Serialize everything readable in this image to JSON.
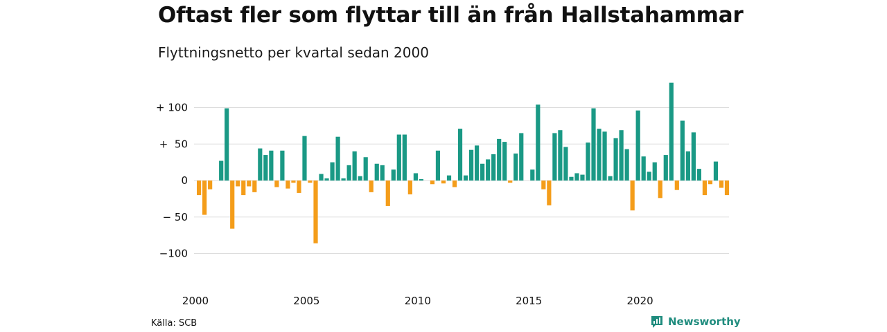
{
  "title": "Oftast fler som flyttar till än från Hallstahammar",
  "subtitle": "Flyttningsnetto per kvartal sedan 2000",
  "source": "Källa: SCB",
  "brand": {
    "name": "Newsworthy",
    "icon": "newsworthy-logo-icon"
  },
  "colors": {
    "positive": "#1a9985",
    "negative": "#f49d1a",
    "grid": "#dddddd"
  },
  "chart_data": {
    "type": "bar",
    "title": "Oftast fler som flyttar till än från Hallstahammar",
    "subtitle": "Flyttningsnetto per kvartal sedan 2000",
    "ylim": [
      -130,
      135
    ],
    "y_ticks": [
      {
        "value": 100,
        "label": "+ 100"
      },
      {
        "value": 50,
        "label": "+  50"
      },
      {
        "value": 0,
        "label": "0"
      },
      {
        "value": -50,
        "label": "− 50"
      },
      {
        "value": -100,
        "label": "−100"
      }
    ],
    "x_ticks": [
      "2000",
      "2005",
      "2010",
      "2015",
      "2020"
    ],
    "x_start": "2000 Q1",
    "grid": true,
    "legend": "none",
    "values": [
      -20,
      -47,
      -12,
      0,
      27,
      99,
      -66,
      -8,
      -20,
      -8,
      -16,
      44,
      35,
      41,
      -9,
      41,
      -11,
      -3,
      -17,
      61,
      -3,
      -86,
      9,
      3,
      25,
      60,
      3,
      21,
      40,
      6,
      32,
      -16,
      23,
      21,
      -35,
      15,
      63,
      63,
      -19,
      10,
      2,
      0,
      -5,
      41,
      -4,
      7,
      -9,
      71,
      7,
      42,
      48,
      23,
      29,
      36,
      57,
      53,
      -3,
      37,
      65,
      0,
      15,
      104,
      -12,
      -34,
      65,
      69,
      46,
      5,
      10,
      8,
      52,
      99,
      71,
      67,
      6,
      58,
      69,
      43,
      -41,
      96,
      33,
      12,
      25,
      -24,
      35,
      134,
      -13,
      82,
      40,
      66,
      16,
      -20,
      -5,
      26,
      -10,
      -20
    ]
  }
}
